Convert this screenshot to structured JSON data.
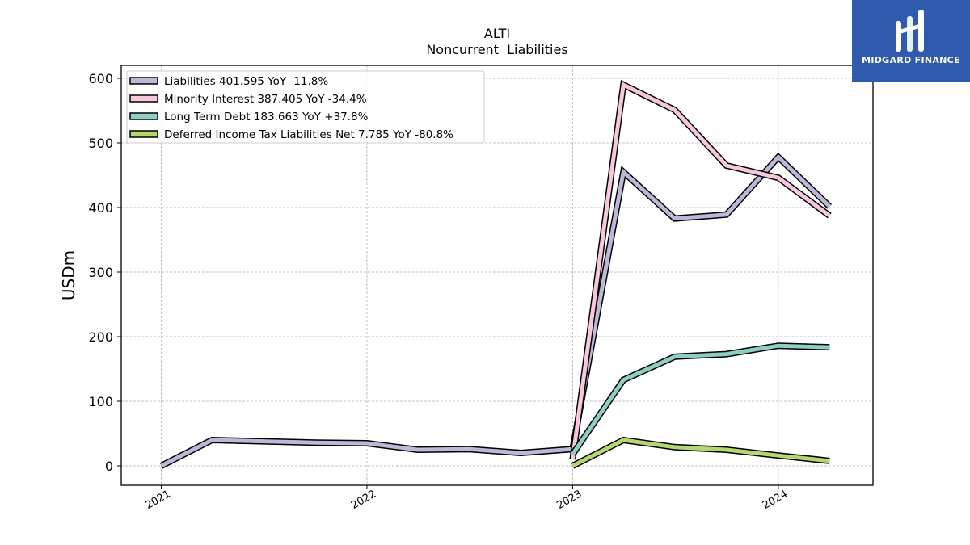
{
  "logo": {
    "text": "MIDGARD FINANCE",
    "background": "#2f5aad"
  },
  "chart_data": {
    "type": "line",
    "title": "ALTI",
    "subtitle": "Noncurrent  Liabilities",
    "ylabel": "USDm",
    "xlabel": "",
    "ylim": [
      -30,
      620
    ],
    "yticks": [
      0,
      100,
      200,
      300,
      400,
      500,
      600
    ],
    "xlim": [
      "2020-10-22",
      "2024-06-17"
    ],
    "xticks": [
      {
        "date": "2021-01-01",
        "label": "2021"
      },
      {
        "date": "2022-01-01",
        "label": "2022"
      },
      {
        "date": "2023-01-01",
        "label": "2023"
      },
      {
        "date": "2024-01-01",
        "label": "2024"
      }
    ],
    "grid": true,
    "legend_position": "top-left",
    "series": [
      {
        "name": "Liabilities  401.595 YoY -11.8%",
        "color": "#bcb8d9",
        "x": [
          "2021-01-01",
          "2021-04-01",
          "2021-07-01",
          "2021-10-01",
          "2022-01-01",
          "2022-04-01",
          "2022-07-01",
          "2022-10-01",
          "2023-01-01",
          "2023-04-01",
          "2023-07-01",
          "2023-10-01",
          "2024-01-01",
          "2024-04-01"
        ],
        "y": [
          0,
          40,
          38,
          36,
          35,
          25,
          26,
          20,
          26,
          455,
          383,
          389,
          478,
          401.595
        ]
      },
      {
        "name": "Minority Interest  387.405 YoY -34.4%",
        "color": "#f9c7dd",
        "x": [
          "2023-01-01",
          "2023-04-01",
          "2023-07-01",
          "2023-10-01",
          "2024-01-01",
          "2024-04-01"
        ],
        "y": [
          10,
          590,
          551,
          465,
          446,
          387.405
        ]
      },
      {
        "name": "Long Term Debt  183.663 YoY +37.8%",
        "color": "#8fcfc3",
        "x": [
          "2023-01-01",
          "2023-04-01",
          "2023-07-01",
          "2023-10-01",
          "2024-01-01",
          "2024-04-01"
        ],
        "y": [
          18,
          133,
          169,
          173,
          186,
          183.663
        ]
      },
      {
        "name": "Deferred Income Tax Liabilities Net  7.785 YoY -80.8%",
        "color": "#b3d96e",
        "x": [
          "2023-01-01",
          "2023-04-01",
          "2023-07-01",
          "2023-10-01",
          "2024-01-01",
          "2024-04-01"
        ],
        "y": [
          0,
          40,
          29,
          25,
          16,
          7.785
        ]
      }
    ]
  }
}
